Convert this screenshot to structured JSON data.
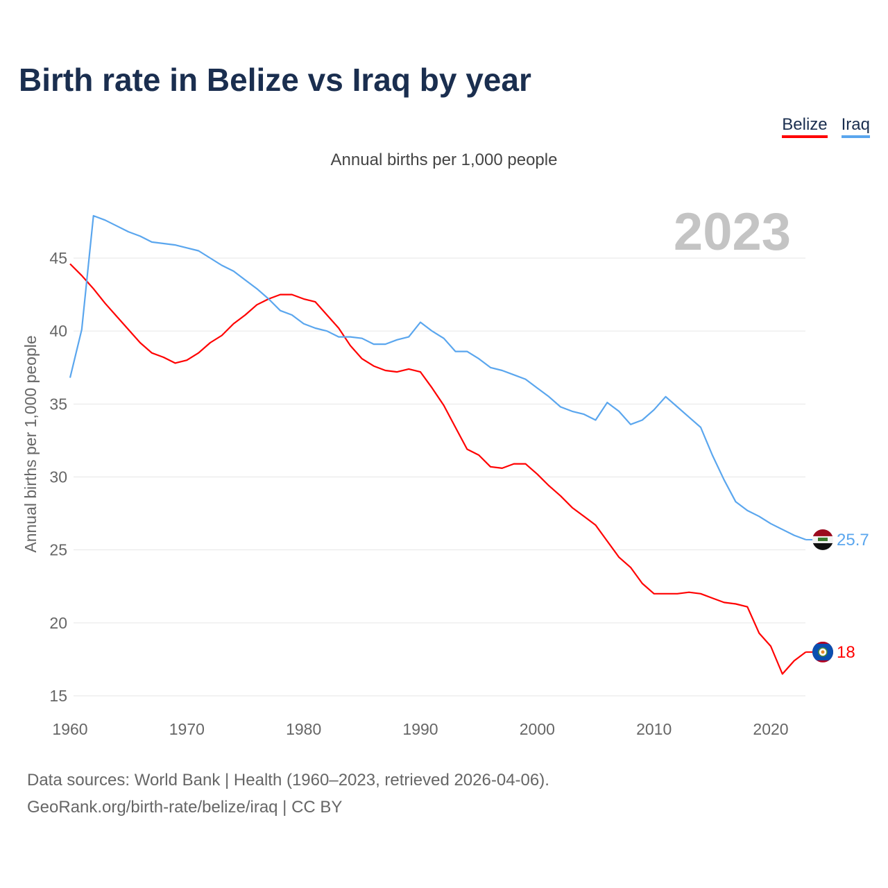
{
  "title": "Birth rate in Belize vs Iraq by year",
  "subtitle": "Annual births per 1,000 people",
  "year_label": "2023",
  "source_line1": "Data sources: World Bank | Health (1960–2023, retrieved 2026-04-06).",
  "source_line2": "GeoRank.org/birth-rate/belize/iraq | CC BY",
  "chart_data": {
    "type": "line",
    "title": "Birth rate in Belize vs Iraq by year",
    "xlabel": "",
    "ylabel": "Annual births per 1,000 people",
    "xlim": [
      1960,
      2023
    ],
    "ylim": [
      15,
      48
    ],
    "xticks": [
      1960,
      1970,
      1980,
      1990,
      2000,
      2010,
      2020
    ],
    "yticks": [
      15,
      20,
      25,
      30,
      35,
      40,
      45
    ],
    "grid": true,
    "legend_position": "top-right",
    "x": [
      1960,
      1961,
      1962,
      1963,
      1964,
      1965,
      1966,
      1967,
      1968,
      1969,
      1970,
      1971,
      1972,
      1973,
      1974,
      1975,
      1976,
      1977,
      1978,
      1979,
      1980,
      1981,
      1982,
      1983,
      1984,
      1985,
      1986,
      1987,
      1988,
      1989,
      1990,
      1991,
      1992,
      1993,
      1994,
      1995,
      1996,
      1997,
      1998,
      1999,
      2000,
      2001,
      2002,
      2003,
      2004,
      2005,
      2006,
      2007,
      2008,
      2009,
      2010,
      2011,
      2012,
      2013,
      2014,
      2015,
      2016,
      2017,
      2018,
      2019,
      2020,
      2021,
      2022,
      2023
    ],
    "series": [
      {
        "name": "Belize",
        "color": "#ff0000",
        "end_label": "18",
        "values": [
          44.6,
          43.8,
          42.9,
          41.9,
          41.0,
          40.1,
          39.2,
          38.5,
          38.2,
          37.8,
          38.0,
          38.5,
          39.2,
          39.7,
          40.5,
          41.1,
          41.8,
          42.2,
          42.5,
          42.5,
          42.2,
          42.0,
          41.1,
          40.2,
          39.0,
          38.1,
          37.6,
          37.3,
          37.2,
          37.4,
          37.2,
          36.1,
          34.9,
          33.4,
          31.9,
          31.5,
          30.7,
          30.6,
          30.9,
          30.9,
          30.2,
          29.4,
          28.7,
          27.9,
          27.3,
          26.7,
          25.6,
          24.5,
          23.8,
          22.7,
          22.0,
          22.0,
          22.0,
          22.1,
          22.0,
          21.7,
          21.4,
          21.3,
          21.1,
          19.3,
          18.4,
          16.5,
          17.4,
          18.0
        ]
      },
      {
        "name": "Iraq",
        "color": "#5aa6ee",
        "end_label": "25.7",
        "values": [
          36.8,
          40.1,
          47.9,
          47.6,
          47.2,
          46.8,
          46.5,
          46.1,
          46.0,
          45.9,
          45.7,
          45.5,
          45.0,
          44.5,
          44.1,
          43.5,
          42.9,
          42.2,
          41.4,
          41.1,
          40.5,
          40.2,
          40.0,
          39.6,
          39.6,
          39.5,
          39.1,
          39.1,
          39.4,
          39.6,
          40.6,
          40.0,
          39.5,
          38.6,
          38.6,
          38.1,
          37.5,
          37.3,
          37.0,
          36.7,
          36.1,
          35.5,
          34.8,
          34.5,
          34.3,
          33.9,
          35.1,
          34.5,
          33.6,
          33.9,
          34.6,
          35.5,
          34.8,
          34.1,
          33.4,
          31.5,
          29.8,
          28.3,
          27.7,
          27.3,
          26.8,
          26.4,
          26.0,
          25.7
        ]
      }
    ]
  }
}
